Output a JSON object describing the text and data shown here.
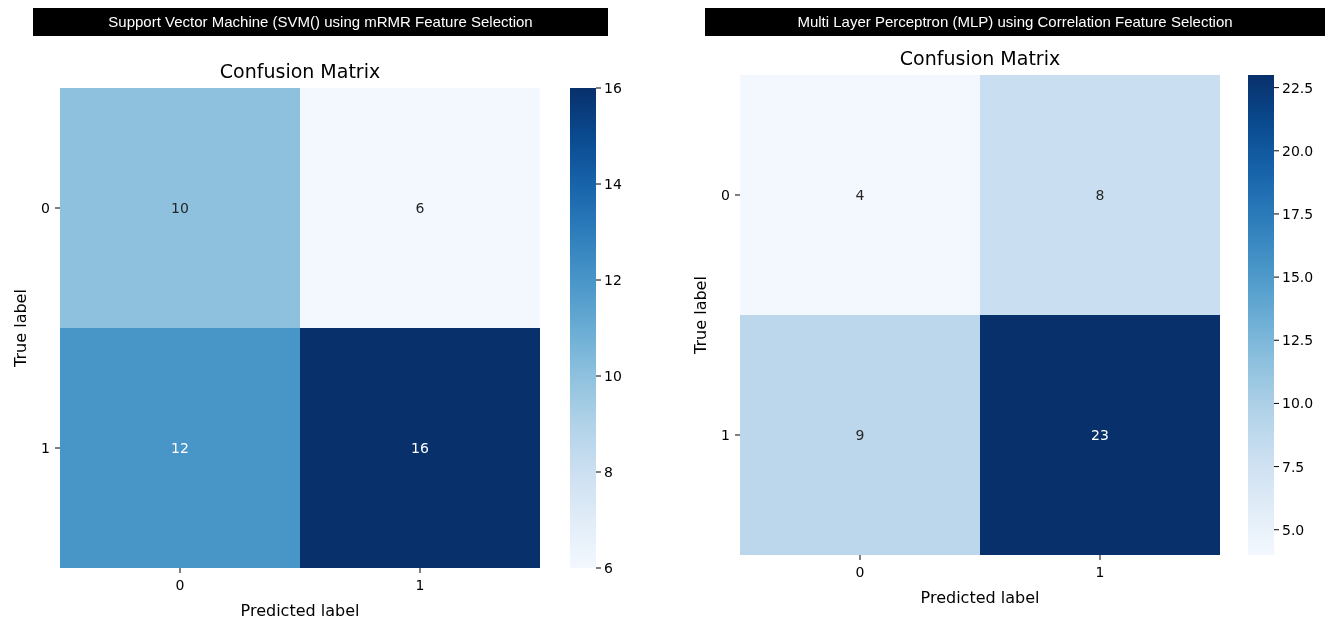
{
  "chart_data": [
    {
      "type": "heatmap",
      "title": "Support Vector Machine (SVM() using mRMR Feature Selection",
      "subtitle": "Confusion Matrix",
      "xlabel": "Predicted label",
      "ylabel": "True label",
      "categories": [
        "0",
        "1"
      ],
      "y_categories": [
        "0",
        "1"
      ],
      "cells": [
        [
          10,
          6
        ],
        [
          12,
          16
        ]
      ],
      "data_labels": true,
      "clim": [
        6,
        16
      ],
      "cticks": [
        6,
        8,
        10,
        12,
        14,
        16
      ]
    },
    {
      "type": "heatmap",
      "title": "Multi Layer Perceptron (MLP) using Correlation Feature Selection",
      "subtitle": "Confusion Matrix",
      "xlabel": "Predicted label",
      "ylabel": "True label",
      "categories": [
        "0",
        "1"
      ],
      "y_categories": [
        "0",
        "1"
      ],
      "cells": [
        [
          4,
          8
        ],
        [
          9,
          23
        ]
      ],
      "data_labels": true,
      "clim": [
        4,
        23
      ],
      "cticks": [
        {
          "value": 5,
          "label": "5.0"
        },
        {
          "value": 7.5,
          "label": "7.5"
        },
        {
          "value": 10,
          "label": "10.0"
        },
        {
          "value": 12.5,
          "label": "12.5"
        },
        {
          "value": 15,
          "label": "15.0"
        },
        {
          "value": 17.5,
          "label": "17.5"
        },
        {
          "value": 20,
          "label": "20.0"
        },
        {
          "value": 22.5,
          "label": "22.5"
        }
      ]
    }
  ]
}
